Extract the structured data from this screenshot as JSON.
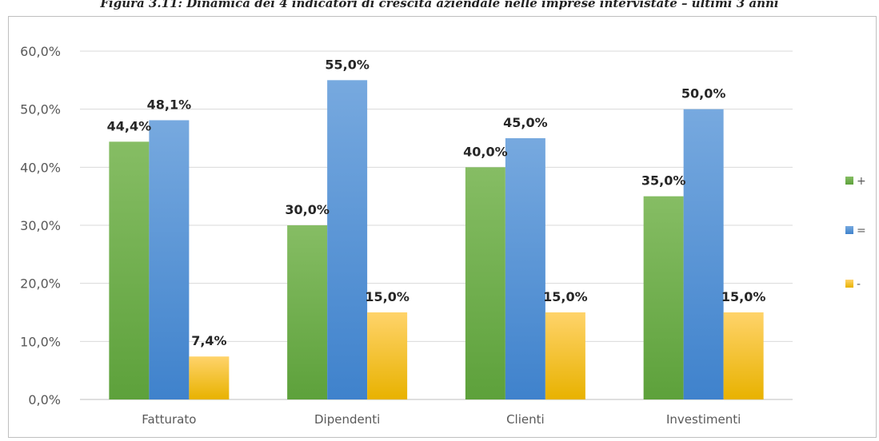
{
  "caption": "Figura 3.11: Dinamica dei 4 indicatori di crescita aziendale nelle imprese intervistate – ultimi 3 anni",
  "chart_data": {
    "type": "bar",
    "title": "",
    "xlabel": "",
    "ylabel": "",
    "categories": [
      "Fatturato",
      "Dipendenti",
      "Clienti",
      "Investimenti"
    ],
    "series": [
      {
        "name": "+",
        "values": [
          44.4,
          30.0,
          40.0,
          35.0
        ],
        "labels": [
          "44,4%",
          "30,0%",
          "40,0%",
          "35,0%"
        ],
        "color_top": "#86bd64",
        "color_bottom": "#5da13b"
      },
      {
        "name": "=",
        "values": [
          48.1,
          55.0,
          45.0,
          50.0
        ],
        "labels": [
          "48,1%",
          "55,0%",
          "45,0%",
          "50,0%"
        ],
        "color_top": "#77a9df",
        "color_bottom": "#3f82cc"
      },
      {
        "name": "-",
        "values": [
          7.4,
          15.0,
          15.0,
          15.0
        ],
        "labels": [
          "7,4%",
          "15,0%",
          "15,0%",
          "15,0%"
        ],
        "color_top": "#ffd36a",
        "color_bottom": "#e8b200"
      }
    ],
    "ylim": [
      0,
      60
    ],
    "yticks": [
      0,
      10,
      20,
      30,
      40,
      50,
      60
    ],
    "ytick_labels": [
      "0,0%",
      "10,0%",
      "20,0%",
      "30,0%",
      "40,0%",
      "50,0%",
      "60,0%"
    ],
    "grid": true,
    "legend": "right",
    "gridline_color": "#d9d9d9",
    "axis_color": "#bfbfbf"
  }
}
